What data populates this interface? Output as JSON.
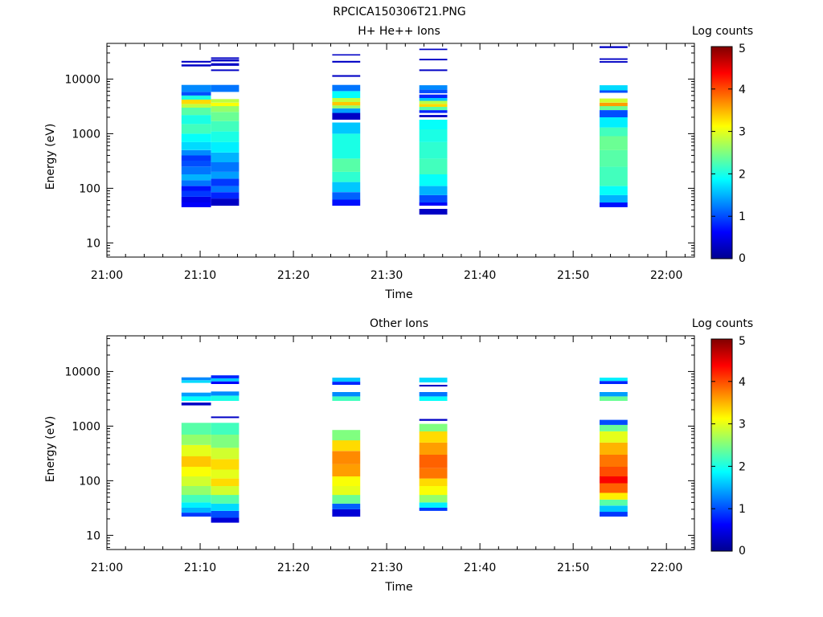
{
  "figure_title": "RPCICA150306T21.PNG",
  "chart_data": [
    {
      "type": "heatmap",
      "title": "H+ He++ Ions",
      "xlabel": "Time",
      "ylabel": "Energy (eV)",
      "colorbar_label": "Log counts",
      "y_scale": "log",
      "ylim": [
        5.5,
        45000
      ],
      "y_ticks": [
        {
          "v": 10,
          "label": "10"
        },
        {
          "v": 100,
          "label": "100"
        },
        {
          "v": 1000,
          "label": "1000"
        },
        {
          "v": 10000,
          "label": "10000"
        }
      ],
      "xlim": [
        "21:00",
        "22:03"
      ],
      "x_ticks": [
        "21:00",
        "21:10",
        "21:20",
        "21:30",
        "21:40",
        "21:50",
        "22:00"
      ],
      "colorbar_range": [
        0,
        5
      ],
      "colorbar_ticks": [
        "0",
        "1",
        "2",
        "3",
        "4",
        "5"
      ],
      "columns": [
        {
          "t_start": "21:08:00",
          "t_end": "21:11:10",
          "cells": [
            [
              45,
              55,
              0.6
            ],
            [
              55,
              70,
              0.5
            ],
            [
              70,
              90,
              0.9
            ],
            [
              90,
              110,
              0.7
            ],
            [
              110,
              140,
              1.2
            ],
            [
              140,
              180,
              1.5
            ],
            [
              180,
              250,
              1.2
            ],
            [
              250,
              320,
              1.0
            ],
            [
              320,
              400,
              0.9
            ],
            [
              400,
              500,
              1.3
            ],
            [
              500,
              700,
              1.7
            ],
            [
              700,
              1000,
              1.9
            ],
            [
              1000,
              1500,
              2.2
            ],
            [
              1500,
              2200,
              2.0
            ],
            [
              2200,
              3000,
              2.3
            ],
            [
              3000,
              3500,
              2.8
            ],
            [
              3500,
              4200,
              3.3
            ],
            [
              4200,
              5000,
              2.0
            ],
            [
              5000,
              5800,
              1.0
            ],
            [
              5800,
              7800,
              1.3
            ],
            [
              17000,
              18500,
              0.3
            ],
            [
              20000,
              21500,
              0.3
            ]
          ]
        },
        {
          "t_start": "21:11:10",
          "t_end": "21:14:10",
          "cells": [
            [
              48,
              65,
              0.3
            ],
            [
              65,
              85,
              0.8
            ],
            [
              85,
              110,
              1.2
            ],
            [
              110,
              150,
              0.9
            ],
            [
              150,
              200,
              1.4
            ],
            [
              200,
              300,
              1.2
            ],
            [
              300,
              450,
              1.5
            ],
            [
              450,
              700,
              1.8
            ],
            [
              700,
              1100,
              2.0
            ],
            [
              1100,
              1700,
              2.2
            ],
            [
              1700,
              2500,
              2.4
            ],
            [
              2500,
              3200,
              2.6
            ],
            [
              3200,
              3700,
              3.1
            ],
            [
              3700,
              4300,
              2.8
            ],
            [
              5800,
              7800,
              1.2
            ],
            [
              14000,
              15000,
              0.3
            ],
            [
              17500,
              19500,
              0.3
            ],
            [
              21000,
              23000,
              0.3
            ],
            [
              23500,
              25000,
              0.3
            ]
          ]
        },
        {
          "t_start": "21:24:10",
          "t_end": "21:27:10",
          "cells": [
            [
              48,
              62,
              0.7
            ],
            [
              62,
              85,
              1.1
            ],
            [
              85,
              130,
              1.6
            ],
            [
              130,
              200,
              2.1
            ],
            [
              200,
              350,
              2.3
            ],
            [
              350,
              600,
              2.0
            ],
            [
              600,
              1000,
              2.0
            ],
            [
              1000,
              1600,
              1.6
            ],
            [
              1800,
              2400,
              0.3
            ],
            [
              2400,
              2900,
              1.4
            ],
            [
              2900,
              3300,
              2.6
            ],
            [
              3300,
              3800,
              3.4
            ],
            [
              3800,
              4500,
              2.8
            ],
            [
              4500,
              6000,
              1.9
            ],
            [
              6000,
              7800,
              1.2
            ],
            [
              11000,
              11800,
              0.3
            ],
            [
              20000,
              21500,
              0.3
            ],
            [
              27000,
              28500,
              0.3
            ]
          ]
        },
        {
          "t_start": "21:33:30",
          "t_end": "21:36:30",
          "cells": [
            [
              33,
              42,
              0.3
            ],
            [
              48,
              55,
              0.6
            ],
            [
              55,
              75,
              1.0
            ],
            [
              75,
              110,
              1.5
            ],
            [
              110,
              180,
              1.9
            ],
            [
              180,
              350,
              2.2
            ],
            [
              350,
              700,
              2.1
            ],
            [
              700,
              1200,
              2.0
            ],
            [
              1200,
              1800,
              1.9
            ],
            [
              2000,
              2200,
              0.3
            ],
            [
              2400,
              2700,
              0.8
            ],
            [
              2700,
              3100,
              2.3
            ],
            [
              3100,
              3500,
              3.3
            ],
            [
              3500,
              4000,
              2.8
            ],
            [
              4000,
              4500,
              1.6
            ],
            [
              4500,
              5200,
              0.8
            ],
            [
              5500,
              6400,
              1.0
            ],
            [
              6400,
              7700,
              1.3
            ],
            [
              14000,
              15000,
              0.3
            ],
            [
              22000,
              23500,
              0.3
            ],
            [
              34000,
              36000,
              0.3
            ]
          ]
        },
        {
          "t_start": "21:52:50",
          "t_end": "21:55:50",
          "cells": [
            [
              45,
              55,
              0.7
            ],
            [
              55,
              75,
              1.5
            ],
            [
              75,
              110,
              1.9
            ],
            [
              110,
              250,
              2.2
            ],
            [
              250,
              500,
              2.3
            ],
            [
              500,
              900,
              2.4
            ],
            [
              900,
              1300,
              2.2
            ],
            [
              1300,
              2000,
              1.8
            ],
            [
              2000,
              2700,
              1.0
            ],
            [
              2700,
              3200,
              2.4
            ],
            [
              3200,
              3700,
              3.6
            ],
            [
              3700,
              4400,
              2.9
            ],
            [
              5600,
              6200,
              1.0
            ],
            [
              6200,
              7700,
              1.7
            ],
            [
              20000,
              21300,
              0.3
            ],
            [
              22500,
              24000,
              0.3
            ],
            [
              37000,
              40000,
              0.3
            ]
          ]
        }
      ]
    },
    {
      "type": "heatmap",
      "title": "Other Ions",
      "xlabel": "Time",
      "ylabel": "Energy (eV)",
      "colorbar_label": "Log counts",
      "y_scale": "log",
      "ylim": [
        5.5,
        45000
      ],
      "y_ticks": [
        {
          "v": 10,
          "label": "10"
        },
        {
          "v": 100,
          "label": "100"
        },
        {
          "v": 1000,
          "label": "1000"
        },
        {
          "v": 10000,
          "label": "10000"
        }
      ],
      "xlim": [
        "21:00",
        "22:03"
      ],
      "x_ticks": [
        "21:00",
        "21:10",
        "21:20",
        "21:30",
        "21:40",
        "21:50",
        "22:00"
      ],
      "colorbar_range": [
        0,
        5
      ],
      "colorbar_ticks": [
        "0",
        "1",
        "2",
        "3",
        "4",
        "5"
      ],
      "columns": [
        {
          "t_start": "21:08:00",
          "t_end": "21:11:10",
          "cells": [
            [
              22,
              26,
              0.9
            ],
            [
              26,
              32,
              1.5
            ],
            [
              32,
              40,
              1.8
            ],
            [
              40,
              55,
              2.2
            ],
            [
              55,
              80,
              2.6
            ],
            [
              80,
              120,
              2.9
            ],
            [
              120,
              180,
              3.1
            ],
            [
              180,
              280,
              3.4
            ],
            [
              280,
              450,
              3.0
            ],
            [
              450,
              700,
              2.6
            ],
            [
              700,
              1150,
              2.3
            ],
            [
              2400,
              2700,
              0.3
            ],
            [
              2900,
              3500,
              1.9
            ],
            [
              3500,
              4100,
              1.4
            ],
            [
              6200,
              6900,
              1.7
            ],
            [
              6900,
              7800,
              1.3
            ]
          ]
        },
        {
          "t_start": "21:11:10",
          "t_end": "21:14:10",
          "cells": [
            [
              17,
              21,
              0.4
            ],
            [
              21,
              28,
              1.0
            ],
            [
              28,
              38,
              1.7
            ],
            [
              38,
              55,
              2.3
            ],
            [
              55,
              80,
              2.9
            ],
            [
              80,
              110,
              3.3
            ],
            [
              110,
              160,
              3.0
            ],
            [
              160,
              250,
              3.3
            ],
            [
              250,
              400,
              2.9
            ],
            [
              400,
              700,
              2.5
            ],
            [
              700,
              1150,
              2.2
            ],
            [
              1400,
              1500,
              0.3
            ],
            [
              2900,
              3600,
              2.0
            ],
            [
              3600,
              4300,
              1.3
            ],
            [
              5900,
              6600,
              0.6
            ],
            [
              6600,
              7500,
              1.6
            ],
            [
              7500,
              8500,
              0.8
            ]
          ]
        },
        {
          "t_start": "21:24:10",
          "t_end": "21:27:10",
          "cells": [
            [
              22,
              30,
              0.4
            ],
            [
              30,
              38,
              1.1
            ],
            [
              38,
              55,
              2.4
            ],
            [
              55,
              80,
              3.0
            ],
            [
              80,
              120,
              3.1
            ],
            [
              120,
              200,
              3.6
            ],
            [
              200,
              350,
              3.7
            ],
            [
              350,
              550,
              3.3
            ],
            [
              550,
              850,
              2.5
            ],
            [
              2900,
              3500,
              2.2
            ],
            [
              3500,
              4200,
              1.3
            ],
            [
              5700,
              6500,
              0.8
            ],
            [
              6500,
              7700,
              1.6
            ]
          ]
        },
        {
          "t_start": "21:33:30",
          "t_end": "21:36:30",
          "cells": [
            [
              28,
              32,
              0.9
            ],
            [
              32,
              40,
              1.8
            ],
            [
              40,
              55,
              2.6
            ],
            [
              55,
              80,
              3.1
            ],
            [
              80,
              110,
              3.3
            ],
            [
              110,
              170,
              3.8
            ],
            [
              170,
              300,
              3.9
            ],
            [
              300,
              500,
              3.6
            ],
            [
              500,
              800,
              3.3
            ],
            [
              800,
              1100,
              2.5
            ],
            [
              1250,
              1350,
              0.3
            ],
            [
              2900,
              3500,
              1.9
            ],
            [
              3500,
              4200,
              1.2
            ],
            [
              5300,
              5700,
              0.3
            ],
            [
              6300,
              7700,
              1.7
            ]
          ]
        },
        {
          "t_start": "21:52:50",
          "t_end": "21:55:50",
          "cells": [
            [
              22,
              27,
              0.9
            ],
            [
              27,
              35,
              1.6
            ],
            [
              35,
              45,
              2.3
            ],
            [
              45,
              60,
              3.2
            ],
            [
              60,
              90,
              3.9
            ],
            [
              90,
              120,
              4.4
            ],
            [
              120,
              180,
              4.0
            ],
            [
              180,
              300,
              3.8
            ],
            [
              300,
              500,
              3.5
            ],
            [
              500,
              800,
              3.0
            ],
            [
              800,
              1050,
              2.4
            ],
            [
              1050,
              1300,
              1.0
            ],
            [
              2900,
              3500,
              2.4
            ],
            [
              3500,
              4200,
              1.4
            ],
            [
              5900,
              6700,
              0.8
            ],
            [
              6700,
              7700,
              1.8
            ]
          ]
        }
      ]
    }
  ]
}
